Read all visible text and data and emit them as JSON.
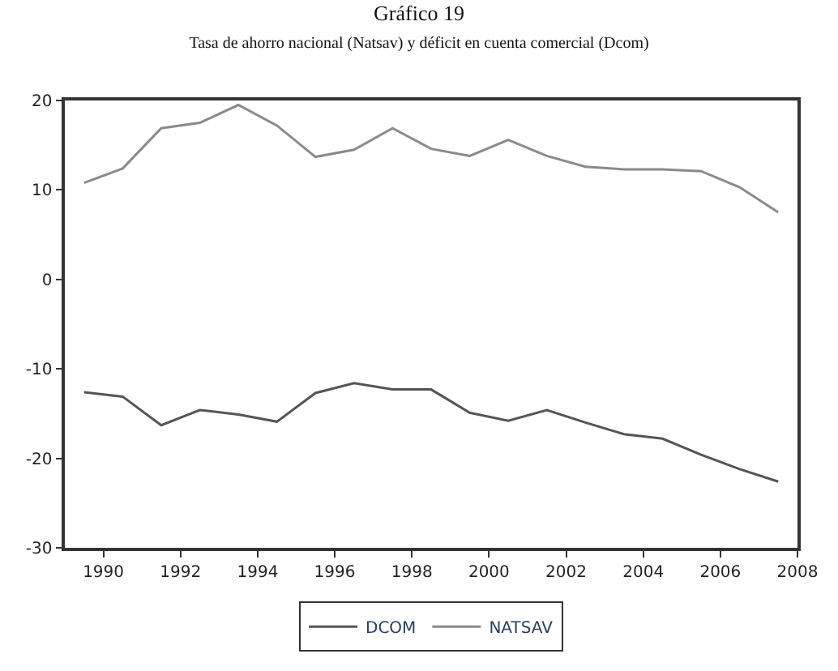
{
  "chart_data": {
    "type": "line",
    "title": "Gráfico 19",
    "subtitle": "Tasa de ahorro nacional (Natsav) y déficit en cuenta comercial (Dcom)",
    "x": [
      1989.5,
      1990.5,
      1991.5,
      1992.5,
      1993.5,
      1994.5,
      1995.5,
      1996.5,
      1997.5,
      1998.5,
      1999.5,
      2000.5,
      2001.5,
      2002.5,
      2003.5,
      2004.5,
      2005.5,
      2006.5,
      2007.5
    ],
    "series": [
      {
        "name": "DCOM",
        "color": "#555555",
        "values": [
          -12.6,
          -13.1,
          -16.3,
          -14.6,
          -15.1,
          -15.9,
          -12.7,
          -11.6,
          -12.3,
          -12.3,
          -14.9,
          -15.8,
          -14.6,
          -16.0,
          -17.3,
          -17.8,
          -19.6,
          -21.2,
          -22.6
        ]
      },
      {
        "name": "NATSAV",
        "color": "#8a8a8a",
        "values": [
          10.8,
          12.4,
          16.9,
          17.5,
          19.5,
          17.2,
          13.7,
          14.5,
          16.9,
          14.6,
          13.8,
          15.6,
          13.8,
          12.6,
          12.3,
          12.3,
          12.1,
          10.3,
          7.5
        ]
      }
    ],
    "xlim": [
      1989,
      2008
    ],
    "xticks": [
      1990,
      1992,
      1994,
      1996,
      1998,
      2000,
      2002,
      2004,
      2006,
      2008
    ],
    "ylim": [
      -30,
      20
    ],
    "yticks": [
      -30,
      -20,
      -10,
      0,
      10,
      20
    ],
    "legend": "bottom",
    "line_style": "solid",
    "marker": "none"
  }
}
